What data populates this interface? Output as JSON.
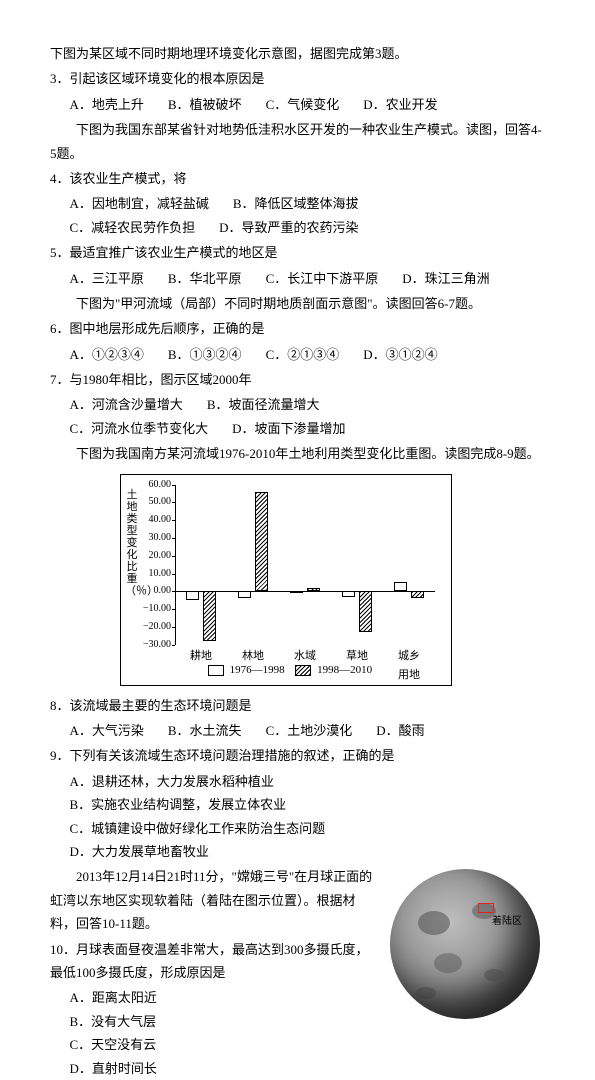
{
  "q3": {
    "stem": "下图为某区域不同时期地理环境变化示意图，据图完成第3题。",
    "prompt": "3．引起该区域环境变化的根本原因是",
    "opts": {
      "a": "A．地壳上升",
      "b": "B．植被破坏",
      "c": "C．气候变化",
      "d": "D．农业开发"
    }
  },
  "q45": {
    "stem": "下图为我国东部某省针对地势低洼积水区开发的一种农业生产模式。读图，回答4-5题。",
    "q4": "4．该农业生产模式，将",
    "q4_opts": {
      "a": "A．因地制宜，减轻盐碱",
      "b": "B．降低区域整体海拔",
      "c": "C．减轻农民劳作负担",
      "d": "D．导致严重的农药污染"
    },
    "q5": "5．最适宜推广该农业生产模式的地区是",
    "q5_opts": {
      "a": "A．三江平原",
      "b": "B．华北平原",
      "c": "C．长江中下游平原",
      "d": "D．珠江三角洲"
    }
  },
  "q67": {
    "stem": "下图为\"甲河流域（局部）不同时期地质剖面示意图\"。读图回答6-7题。",
    "q6": "6．图中地层形成先后顺序，正确的是",
    "q6_opts": {
      "a": "A．①②③④",
      "b": "B．①③②④",
      "c": "C．②①③④",
      "d": "D．③①②④"
    },
    "q7": "7．与1980年相比，图示区域2000年",
    "q7_opts": {
      "a": "A．河流含沙量增大",
      "b": "B．坡面径流量增大",
      "c": "C．河流水位季节变化大",
      "d": "D．坡面下渗量增加"
    }
  },
  "q89": {
    "stem": "下图为我国南方某河流域1976-2010年土地利用类型变化比重图。读图完成8-9题。",
    "q8": "8．该流域最主要的生态环境问题是",
    "q8_opts": {
      "a": "A．大气污染",
      "b": "B．水土流失",
      "c": "C．土地沙漠化",
      "d": "D．酸雨"
    },
    "q9": "9．下列有关该流域生态环境问题治理措施的叙述，正确的是",
    "q9_opts": {
      "a": "A．退耕还林，大力发展水稻种植业",
      "b": "B．实施农业结构调整，发展立体农业",
      "c": "C．城镇建设中做好绿化工作来防治生态问题",
      "d": "D．大力发展草地畜牧业"
    }
  },
  "chart": {
    "ylabel": "土地类型变化比重（％）",
    "ymin": -30,
    "ymax": 60,
    "ystep": 10,
    "yticks": [
      -30,
      -20,
      -10,
      0,
      10,
      20,
      30,
      40,
      50,
      60
    ],
    "categories": [
      "耕地",
      "林地",
      "水域",
      "草地",
      "城乡用地"
    ],
    "series": [
      {
        "name": "1976—1998",
        "pattern": "white",
        "values": [
          -5,
          -4,
          -1,
          -3,
          5
        ]
      },
      {
        "name": "1998—2010",
        "pattern": "hatch",
        "values": [
          -28,
          56,
          2,
          -23,
          -4
        ]
      }
    ],
    "bg": "#ffffff",
    "axis_color": "#000000",
    "font_size": 11
  },
  "q1011": {
    "stem": "2013年12月14日21时11分，\"嫦娥三号\"在月球正面的虹湾以东地区实现软着陆（着陆在图示位置）。根据材料，回答10-11题。",
    "q10": "10．月球表面昼夜温差非常大，最高达到300多摄氏度，最低100多摄氏度，形成原因是",
    "q10_opts": {
      "a": "A．距离太阳近",
      "b": "B．没有大气层",
      "c": "C．天空没有云",
      "d": "D．直射时间长"
    },
    "moon_label": "着陆区"
  }
}
